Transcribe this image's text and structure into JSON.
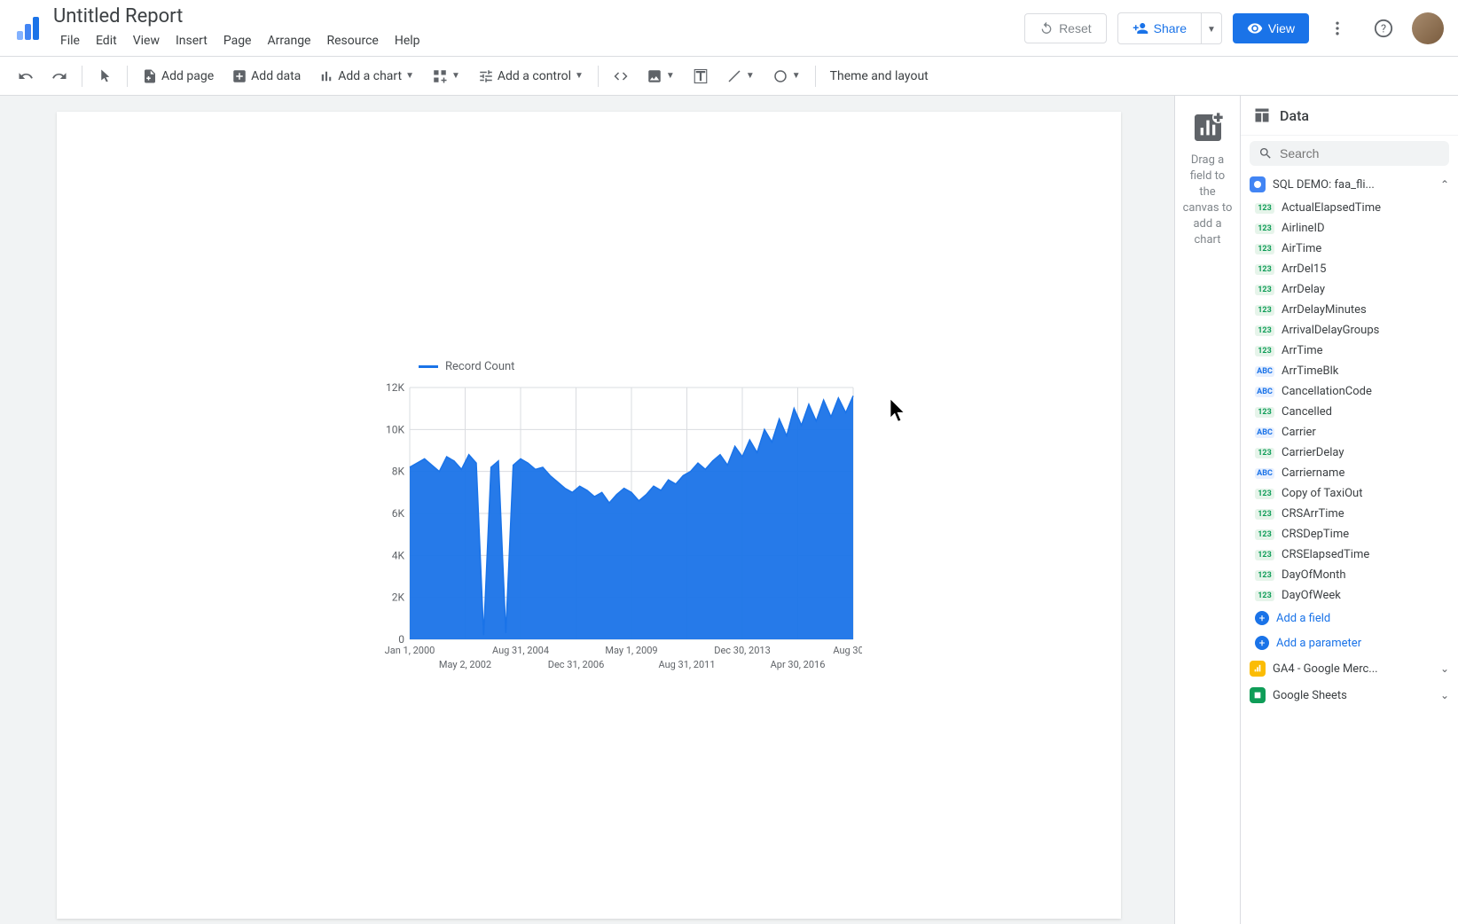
{
  "header": {
    "title": "Untitled Report",
    "menu": [
      "File",
      "Edit",
      "View",
      "Insert",
      "Page",
      "Arrange",
      "Resource",
      "Help"
    ],
    "reset": "Reset",
    "share": "Share",
    "view": "View"
  },
  "toolbar": {
    "add_page": "Add page",
    "add_data": "Add data",
    "add_chart": "Add a chart",
    "add_control": "Add a control",
    "theme": "Theme and layout"
  },
  "drop_panel": {
    "text": "Drag a field to the canvas to add a chart"
  },
  "data_panel": {
    "title": "Data",
    "search_placeholder": "Search",
    "sources": [
      {
        "name": "SQL DEMO: faa_fli...",
        "type": "bq"
      },
      {
        "name": "GA4 - Google Merc...",
        "type": "ga"
      },
      {
        "name": "Google Sheets",
        "type": "gs"
      }
    ],
    "fields": [
      {
        "name": "ActualElapsedTime",
        "type": "num"
      },
      {
        "name": "AirlineID",
        "type": "num"
      },
      {
        "name": "AirTime",
        "type": "num"
      },
      {
        "name": "ArrDel15",
        "type": "num"
      },
      {
        "name": "ArrDelay",
        "type": "num"
      },
      {
        "name": "ArrDelayMinutes",
        "type": "num"
      },
      {
        "name": "ArrivalDelayGroups",
        "type": "num"
      },
      {
        "name": "ArrTime",
        "type": "num"
      },
      {
        "name": "ArrTimeBlk",
        "type": "txt"
      },
      {
        "name": "CancellationCode",
        "type": "txt"
      },
      {
        "name": "Cancelled",
        "type": "num"
      },
      {
        "name": "Carrier",
        "type": "txt"
      },
      {
        "name": "CarrierDelay",
        "type": "num"
      },
      {
        "name": "Carriername",
        "type": "txt"
      },
      {
        "name": "Copy of TaxiOut",
        "type": "num"
      },
      {
        "name": "CRSArrTime",
        "type": "num"
      },
      {
        "name": "CRSDepTime",
        "type": "num"
      },
      {
        "name": "CRSElapsedTime",
        "type": "num"
      },
      {
        "name": "DayOfMonth",
        "type": "num"
      },
      {
        "name": "DayOfWeek",
        "type": "num"
      }
    ],
    "add_field": "Add a field",
    "add_param": "Add a parameter"
  },
  "chart": {
    "type": "line",
    "legend": "Record Count",
    "series_color": "#1a73e8",
    "background_color": "#ffffff",
    "grid_color": "#dadce0",
    "axis_color": "#5f6368",
    "y_ticks": [
      "0",
      "2K",
      "4K",
      "6K",
      "8K",
      "10K",
      "12K"
    ],
    "ylim": [
      0,
      12000
    ],
    "x_labels_top": [
      "Jan 1, 2000",
      "Aug 31, 2004",
      "May 1, 2009",
      "Dec 30, 2013",
      "Aug 30,..."
    ],
    "x_labels_bottom": [
      "May 2, 2002",
      "Dec 31, 2006",
      "Aug 31, 2011",
      "Apr 30, 2016"
    ],
    "series": [
      8200,
      8400,
      8600,
      8300,
      8000,
      8700,
      8500,
      8100,
      8800,
      8400,
      200,
      8200,
      8500,
      300,
      8300,
      8600,
      8400,
      8100,
      8200,
      7800,
      7500,
      7200,
      7000,
      7300,
      7100,
      6800,
      7000,
      6500,
      6900,
      7200,
      7000,
      6600,
      6900,
      7300,
      7100,
      7600,
      7400,
      7800,
      8000,
      8400,
      8100,
      8500,
      8800,
      8300,
      9200,
      8700,
      9500,
      8900,
      10000,
      9400,
      10500,
      9700,
      11000,
      10200,
      11200,
      10400,
      11400,
      10600,
      11500,
      10800,
      11600
    ]
  }
}
